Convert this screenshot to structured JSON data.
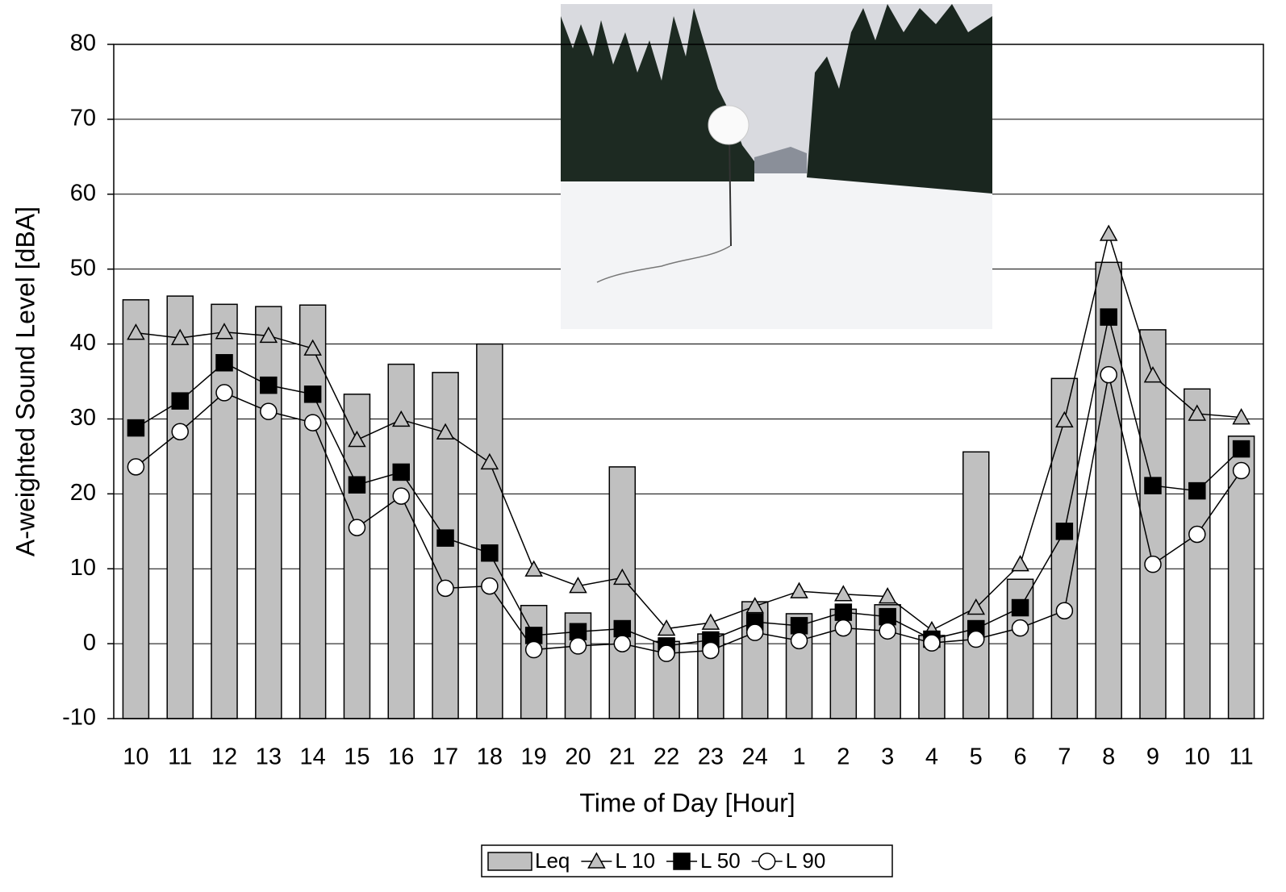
{
  "chart_data": {
    "type": "bar",
    "x_label": "Time of Day [Hour]",
    "y_label": "A-weighted Sound Level [dBA]",
    "categories": [
      "10",
      "11",
      "12",
      "13",
      "14",
      "15",
      "16",
      "17",
      "18",
      "19",
      "20",
      "21",
      "22",
      "23",
      "24",
      "1",
      "2",
      "3",
      "4",
      "5",
      "6",
      "7",
      "8",
      "9",
      "10",
      "11"
    ],
    "ylim": [
      -10,
      80
    ],
    "yticks": [
      -10,
      0,
      10,
      20,
      30,
      40,
      50,
      60,
      70,
      80
    ],
    "grid": true,
    "series": [
      {
        "name": "Leq",
        "type": "bar",
        "color": "#c0c0c0",
        "values": [
          45.9,
          46.4,
          45.3,
          45.0,
          45.2,
          33.3,
          37.3,
          36.2,
          40.0,
          5.1,
          4.1,
          23.6,
          0.3,
          1.3,
          5.6,
          4.0,
          4.6,
          5.2,
          1.1,
          25.6,
          8.6,
          35.4,
          50.9,
          41.9,
          34.0,
          27.7
        ]
      },
      {
        "name": "L 10",
        "type": "line",
        "marker": "triangle",
        "color": "#c0c0c0",
        "values": [
          41.5,
          40.8,
          41.6,
          41.1,
          39.4,
          27.2,
          29.9,
          28.2,
          24.2,
          9.9,
          7.7,
          8.8,
          2.0,
          2.8,
          5.0,
          7.0,
          6.6,
          6.3,
          1.8,
          4.8,
          10.6,
          29.8,
          54.7,
          35.8,
          30.7,
          30.2
        ]
      },
      {
        "name": "L 50",
        "type": "line",
        "marker": "square",
        "color": "#000000",
        "values": [
          28.8,
          32.4,
          37.5,
          34.5,
          33.3,
          21.2,
          22.9,
          14.1,
          12.1,
          1.1,
          1.6,
          2.0,
          -0.3,
          0.5,
          2.9,
          2.4,
          4.2,
          3.6,
          0.6,
          2.0,
          4.8,
          15.0,
          43.6,
          21.1,
          20.4,
          26.0
        ]
      },
      {
        "name": "L 90",
        "type": "line",
        "marker": "circle",
        "color": "#ffffff",
        "values": [
          23.6,
          28.3,
          33.5,
          31.0,
          29.5,
          15.5,
          19.7,
          7.4,
          7.7,
          -0.8,
          -0.3,
          0.0,
          -1.3,
          -0.9,
          1.5,
          0.4,
          2.1,
          1.7,
          0.1,
          0.6,
          2.1,
          4.4,
          35.9,
          10.6,
          14.6,
          23.1
        ]
      }
    ]
  }
}
